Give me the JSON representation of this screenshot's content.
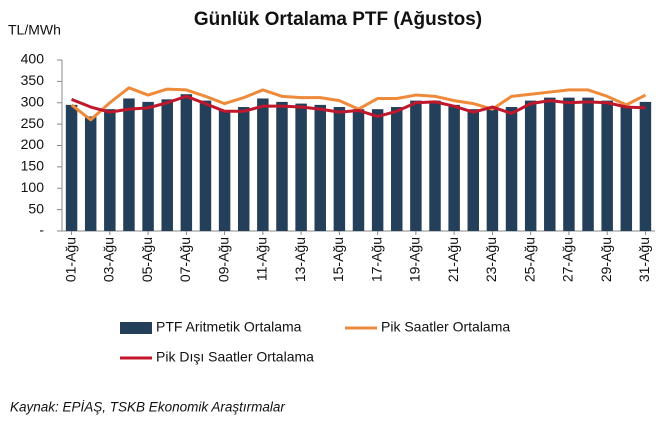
{
  "chart_data": {
    "type": "bar",
    "title": "Günlük Ortalama PTF (Ağustos)",
    "y_label": "TL/MWh",
    "source": "Kaynak: EPİAŞ, TSKB Ekonomik Araştırmalar",
    "categories": [
      "01-Ağu",
      null,
      "03-Ağu",
      null,
      "05-Ağu",
      null,
      "07-Ağu",
      null,
      "09-Ağu",
      null,
      "11-Ağu",
      null,
      "13-Ağu",
      null,
      "15-Ağu",
      null,
      "17-Ağu",
      null,
      "19-Ağu",
      null,
      "21-Ağu",
      null,
      "23-Ağu",
      null,
      "25-Ağu",
      null,
      "27-Ağu",
      null,
      "29-Ağu",
      null,
      "31-Ağu"
    ],
    "series": [
      {
        "name": "PTF Aritmetik Ortalama",
        "type": "bar",
        "color": "#243f5a",
        "values": [
          295,
          268,
          285,
          310,
          302,
          308,
          320,
          305,
          283,
          290,
          310,
          302,
          298,
          295,
          290,
          285,
          285,
          290,
          305,
          305,
          295,
          285,
          290,
          290,
          305,
          312,
          312,
          312,
          305,
          290,
          302
        ]
      },
      {
        "name": "Pik Saatler Ortalama",
        "type": "line",
        "color": "#ee8a3a",
        "values": [
          295,
          260,
          300,
          335,
          318,
          332,
          330,
          315,
          298,
          312,
          330,
          315,
          312,
          312,
          305,
          285,
          310,
          310,
          318,
          315,
          305,
          298,
          285,
          315,
          320,
          325,
          330,
          330,
          315,
          295,
          318
        ]
      },
      {
        "name": "Pik Dışı Saatler Ortalama",
        "type": "line",
        "color": "#c0172c",
        "values": [
          308,
          290,
          278,
          285,
          288,
          300,
          315,
          298,
          280,
          280,
          292,
          292,
          290,
          285,
          278,
          282,
          268,
          280,
          300,
          302,
          292,
          278,
          290,
          275,
          298,
          305,
          300,
          302,
          300,
          290,
          288
        ]
      }
    ],
    "ylim": [
      0,
      400
    ],
    "yticks": [
      {
        "value": 0,
        "label": "-"
      },
      50,
      100,
      150,
      200,
      250,
      300,
      350,
      400
    ]
  }
}
